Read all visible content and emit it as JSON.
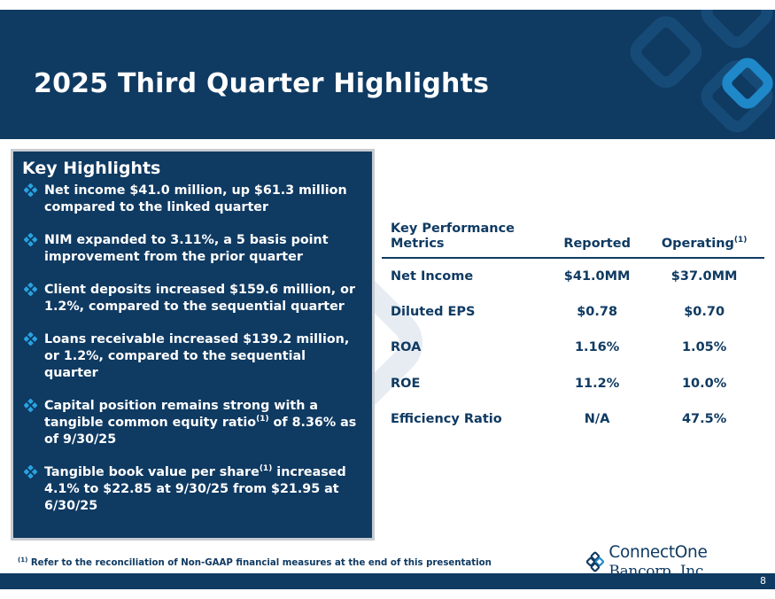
{
  "header": {
    "title": "2025 Third Quarter Highlights"
  },
  "highlights": {
    "title": "Key Highlights",
    "items": [
      {
        "text": "Net income $41.0 million, up $61.3 million compared to the linked quarter"
      },
      {
        "text": "NIM expanded to 3.11%, a 5 basis point improvement from the prior quarter"
      },
      {
        "text": "Client deposits increased $159.6 million, or 1.2%, compared to the sequential quarter"
      },
      {
        "text": "Loans receivable increased $139.2 million, or 1.2%, compared to the sequential quarter"
      },
      {
        "pre": "Capital position remains strong with a tangible common equity ratio",
        "sup": "(1)",
        "post": " of 8.36% as of 9/30/25"
      },
      {
        "pre": "Tangible book value per share",
        "sup": "(1)",
        "post": " increased 4.1% to $22.85 at 9/30/25 from $21.95 at 6/30/25"
      }
    ]
  },
  "kpi_table": {
    "headers": {
      "metric": "Key Performance Metrics",
      "reported": "Reported",
      "operating": "Operating",
      "operating_sup": "(1)"
    },
    "rows": [
      {
        "metric": "Net Income",
        "reported": "$41.0MM",
        "operating": "$37.0MM"
      },
      {
        "metric": "Diluted EPS",
        "reported": "$0.78",
        "operating": "$0.70"
      },
      {
        "metric": "ROA",
        "reported": "1.16%",
        "operating": "1.05%"
      },
      {
        "metric": "ROE",
        "reported": "11.2%",
        "operating": "10.0%"
      },
      {
        "metric": "Efficiency Ratio",
        "reported": "N/A",
        "operating": "47.5%"
      }
    ]
  },
  "footnote": {
    "sup": "(1)",
    "text": " Refer to the reconciliation of Non-GAAP financial measures at the end of this presentation"
  },
  "logo": {
    "name_part1": "ConnectOne",
    "name_part2": " Bancorp, Inc."
  },
  "footer": {
    "page_number": "8"
  },
  "colors": {
    "navy": "#0f3a62",
    "accent": "#1e88c8",
    "light_deco": "#e6ecf2"
  },
  "icons": {
    "bullet": "diamond-cluster-icon",
    "logo": "connectone-logo-icon"
  }
}
